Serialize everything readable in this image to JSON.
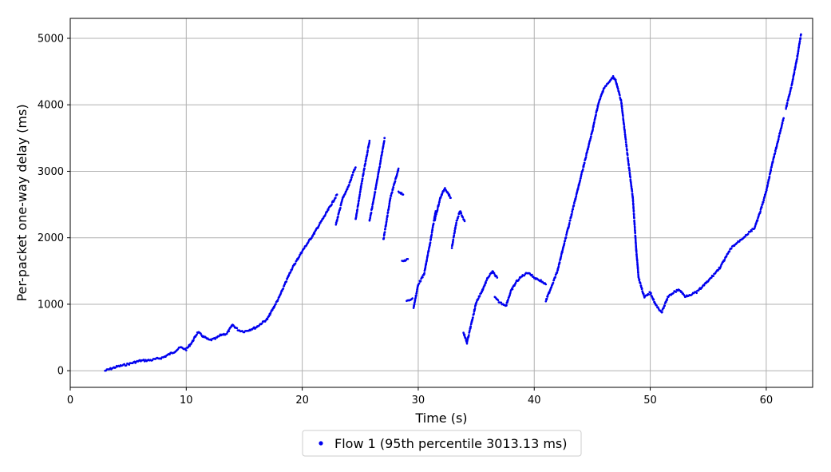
{
  "chart_data": {
    "type": "scatter",
    "xlabel": "Time (s)",
    "ylabel": "Per-packet one-way delay (ms)",
    "xlim": [
      0,
      64
    ],
    "ylim": [
      -250,
      5300
    ],
    "xticks": [
      0,
      10,
      20,
      30,
      40,
      50,
      60
    ],
    "yticks": [
      0,
      1000,
      2000,
      3000,
      4000,
      5000
    ],
    "grid": true,
    "legend_position": "bottom-center",
    "series": [
      {
        "name": "Flow 1 (95th percentile 3013.13 ms)",
        "color": "#0000ee",
        "segments": [
          [
            [
              3.0,
              0
            ],
            [
              4,
              60
            ],
            [
              5,
              100
            ],
            [
              6,
              150
            ],
            [
              7,
              160
            ],
            [
              8,
              200
            ],
            [
              9,
              290
            ],
            [
              9.5,
              350
            ],
            [
              10,
              320
            ],
            [
              10.5,
              430
            ],
            [
              11,
              580
            ],
            [
              11.5,
              510
            ],
            [
              12,
              460
            ],
            [
              12.5,
              480
            ],
            [
              13,
              540
            ],
            [
              13.5,
              560
            ],
            [
              14,
              690
            ],
            [
              14.5,
              610
            ],
            [
              15,
              590
            ],
            [
              16,
              650
            ],
            [
              17,
              780
            ],
            [
              18,
              1100
            ],
            [
              19,
              1500
            ],
            [
              20,
              1800
            ],
            [
              21,
              2060
            ],
            [
              22,
              2350
            ],
            [
              23,
              2650
            ]
          ],
          [
            [
              22.9,
              2200
            ],
            [
              23.5,
              2600
            ],
            [
              24,
              2780
            ],
            [
              24.4,
              2980
            ],
            [
              24.6,
              3060
            ]
          ],
          [
            [
              24.6,
              2270
            ],
            [
              25.1,
              2800
            ],
            [
              25.8,
              3460
            ]
          ],
          [
            [
              25.8,
              2250
            ],
            [
              26.5,
              2900
            ],
            [
              27.1,
              3500
            ]
          ],
          [
            [
              27.0,
              1970
            ],
            [
              27.6,
              2600
            ],
            [
              28.3,
              3040
            ]
          ],
          [
            [
              28.3,
              2700
            ],
            [
              28.7,
              2650
            ]
          ],
          [
            [
              28.6,
              1640
            ],
            [
              29.1,
              1680
            ]
          ],
          [
            [
              29.0,
              1040
            ],
            [
              29.5,
              1090
            ]
          ],
          [
            [
              29.6,
              950
            ],
            [
              30.0,
              1300
            ],
            [
              30.5,
              1450
            ],
            [
              31.0,
              1900
            ],
            [
              31.5,
              2400
            ]
          ],
          [
            [
              31.4,
              2250
            ],
            [
              31.9,
              2600
            ],
            [
              32.3,
              2750
            ],
            [
              32.8,
              2600
            ]
          ],
          [
            [
              32.9,
              1850
            ],
            [
              33.3,
              2250
            ],
            [
              33.6,
              2400
            ],
            [
              34.0,
              2250
            ]
          ],
          [
            [
              33.9,
              580
            ],
            [
              34.2,
              420
            ],
            [
              34.7,
              800
            ],
            [
              35.0,
              1030
            ],
            [
              35.5,
              1200
            ],
            [
              36.0,
              1400
            ],
            [
              36.4,
              1490
            ],
            [
              36.8,
              1400
            ]
          ],
          [
            [
              36.6,
              1100
            ],
            [
              37.0,
              1030
            ],
            [
              37.6,
              980
            ]
          ],
          [
            [
              37.6,
              1000
            ],
            [
              38.0,
              1200
            ],
            [
              38.5,
              1350
            ],
            [
              39.0,
              1430
            ],
            [
              39.5,
              1480
            ],
            [
              40.0,
              1400
            ],
            [
              40.5,
              1360
            ],
            [
              41.0,
              1300
            ]
          ],
          [
            [
              41.0,
              1050
            ],
            [
              42.0,
              1500
            ],
            [
              43.0,
              2200
            ],
            [
              44.0,
              2900
            ],
            [
              45.0,
              3600
            ],
            [
              45.5,
              4000
            ],
            [
              46.0,
              4250
            ],
            [
              46.5,
              4350
            ],
            [
              46.8,
              4420
            ],
            [
              47.0,
              4380
            ],
            [
              47.5,
              4050
            ],
            [
              48.0,
              3300
            ],
            [
              48.5,
              2600
            ],
            [
              48.8,
              1800
            ],
            [
              49.0,
              1400
            ],
            [
              49.5,
              1100
            ],
            [
              50.0,
              1180
            ],
            [
              50.5,
              980
            ],
            [
              51.0,
              880
            ],
            [
              51.5,
              1100
            ],
            [
              52.0,
              1180
            ],
            [
              52.5,
              1220
            ],
            [
              53.0,
              1120
            ],
            [
              54.0,
              1180
            ],
            [
              55.0,
              1350
            ],
            [
              56.0,
              1550
            ],
            [
              57.0,
              1850
            ],
            [
              58.0,
              2000
            ],
            [
              59.0,
              2150
            ],
            [
              59.5,
              2400
            ],
            [
              60.0,
              2700
            ],
            [
              60.5,
              3100
            ],
            [
              61.0,
              3450
            ],
            [
              61.5,
              3800
            ]
          ],
          [
            [
              61.7,
              3950
            ],
            [
              62.2,
              4300
            ],
            [
              62.6,
              4650
            ],
            [
              63.0,
              5060
            ]
          ]
        ]
      }
    ]
  }
}
